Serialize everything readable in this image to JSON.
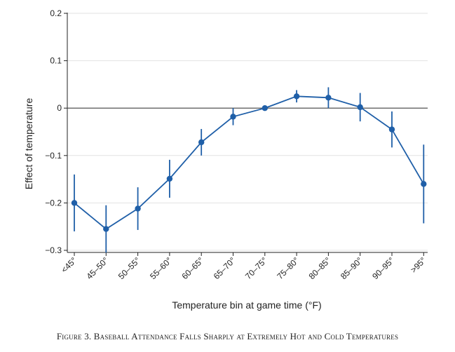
{
  "chart_data": {
    "type": "line",
    "title": "",
    "xlabel": "Temperature bin at game time (°F)",
    "ylabel": "Effect of temperature",
    "ylim": [
      -0.3,
      0.2
    ],
    "yticks": [
      0.2,
      0.1,
      0,
      -0.1,
      -0.2,
      -0.3
    ],
    "ytick_labels": [
      "0.2",
      "0.1",
      "0",
      "−0.1",
      "−0.2",
      "−0.3"
    ],
    "grid": true,
    "reference_line": 0,
    "categories": [
      "<45°",
      "45–50°",
      "50–55°",
      "55–60°",
      "60–65°",
      "65–70°",
      "70–75°",
      "75–80°",
      "80–85°",
      "85–90°",
      "90–95°",
      ">95°"
    ],
    "series": [
      {
        "name": "Effect of temperature",
        "color": "#1f5fa8",
        "values": [
          -0.2,
          -0.255,
          -0.212,
          -0.149,
          -0.072,
          -0.018,
          0.0,
          0.025,
          0.022,
          0.002,
          -0.045,
          -0.16
        ],
        "ci_low": [
          -0.26,
          -0.305,
          -0.257,
          -0.189,
          -0.1,
          -0.036,
          0.0,
          0.012,
          0.0,
          -0.028,
          -0.083,
          -0.243
        ],
        "ci_high": [
          -0.14,
          -0.205,
          -0.167,
          -0.109,
          -0.044,
          0.0,
          0.0,
          0.038,
          0.044,
          0.032,
          -0.007,
          -0.077
        ]
      }
    ]
  },
  "caption": "Figure 3. Baseball Attendance Falls Sharply at Extremely Hot and Cold Temperatures"
}
